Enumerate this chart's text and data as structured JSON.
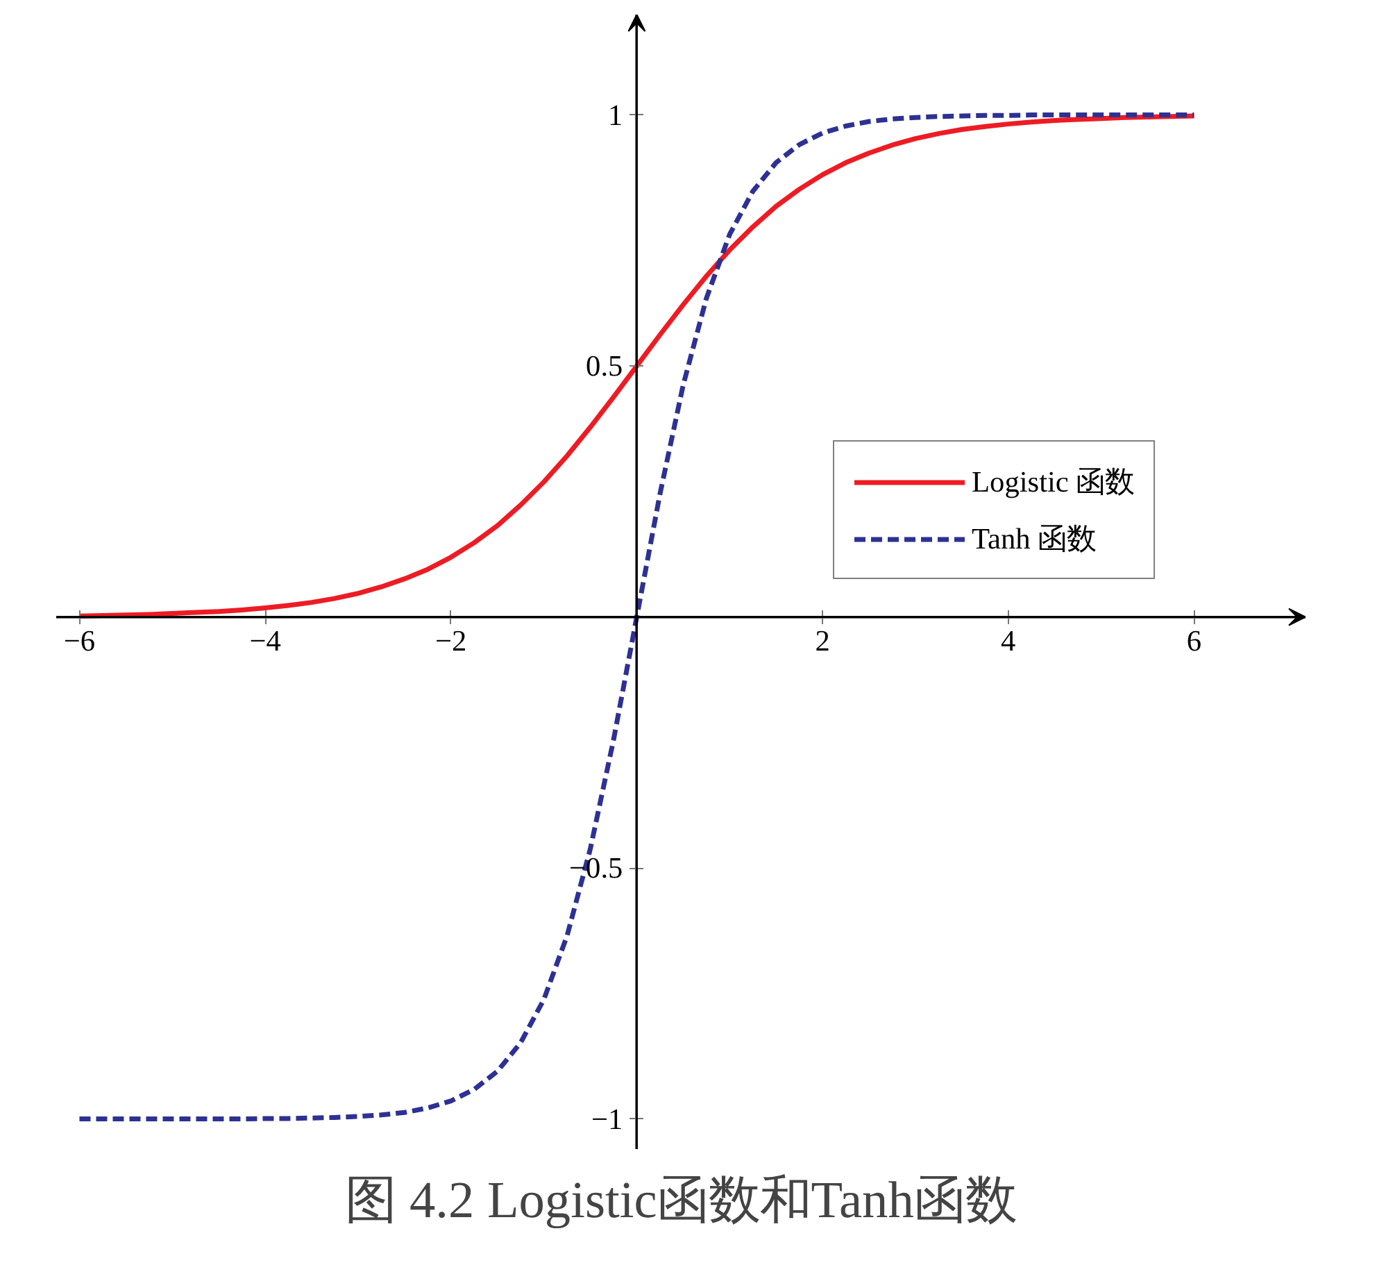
{
  "chart_data": {
    "type": "line",
    "title": "图 4.2 Logistic函数和Tanh函数",
    "x": [
      -6,
      -5.75,
      -5.5,
      -5.25,
      -5,
      -4.75,
      -4.5,
      -4.25,
      -4,
      -3.75,
      -3.5,
      -3.25,
      -3,
      -2.75,
      -2.5,
      -2.25,
      -2,
      -1.75,
      -1.5,
      -1.25,
      -1,
      -0.75,
      -0.5,
      -0.25,
      0,
      0.25,
      0.5,
      0.75,
      1,
      1.25,
      1.5,
      1.75,
      2,
      2.25,
      2.5,
      2.75,
      3,
      3.25,
      3.5,
      3.75,
      4,
      4.25,
      4.5,
      4.75,
      5,
      5.25,
      5.5,
      5.75,
      6
    ],
    "series": [
      {
        "name": "Logistic 函数",
        "color": "#ed1c24",
        "line_style": "solid",
        "values": [
          0.002,
          0.003,
          0.004,
          0.005,
          0.007,
          0.009,
          0.011,
          0.014,
          0.018,
          0.023,
          0.029,
          0.037,
          0.047,
          0.06,
          0.076,
          0.095,
          0.119,
          0.148,
          0.182,
          0.223,
          0.269,
          0.321,
          0.378,
          0.438,
          0.5,
          0.562,
          0.622,
          0.679,
          0.731,
          0.777,
          0.818,
          0.852,
          0.881,
          0.905,
          0.924,
          0.94,
          0.953,
          0.963,
          0.971,
          0.977,
          0.982,
          0.986,
          0.989,
          0.991,
          0.993,
          0.995,
          0.996,
          0.997,
          0.998
        ]
      },
      {
        "name": "Tanh 函数",
        "color": "#2e3192",
        "line_style": "dashed",
        "values": [
          -1,
          -1,
          -1,
          -1,
          -1,
          -1,
          -1,
          -1,
          -0.999,
          -0.999,
          -0.998,
          -0.997,
          -0.995,
          -0.992,
          -0.987,
          -0.978,
          -0.964,
          -0.941,
          -0.905,
          -0.848,
          -0.762,
          -0.635,
          -0.462,
          -0.245,
          0,
          0.245,
          0.462,
          0.635,
          0.762,
          0.848,
          0.905,
          0.941,
          0.964,
          0.978,
          0.987,
          0.992,
          0.995,
          0.997,
          0.998,
          0.999,
          0.999,
          1,
          1,
          1,
          1,
          1,
          1,
          1,
          1
        ]
      }
    ],
    "xlim": [
      -6.25,
      7.2
    ],
    "ylim": [
      -1.06,
      1.2
    ],
    "xticks": [
      {
        "value": -6,
        "label": "−6"
      },
      {
        "value": -4,
        "label": "−4"
      },
      {
        "value": -2,
        "label": "−2"
      },
      2,
      4,
      6
    ],
    "yticks": [
      {
        "value": -1,
        "label": "−1"
      },
      {
        "value": -0.5,
        "label": "−0.5"
      },
      0.5,
      1
    ],
    "grid": false,
    "legend": "right",
    "marker": "none"
  }
}
